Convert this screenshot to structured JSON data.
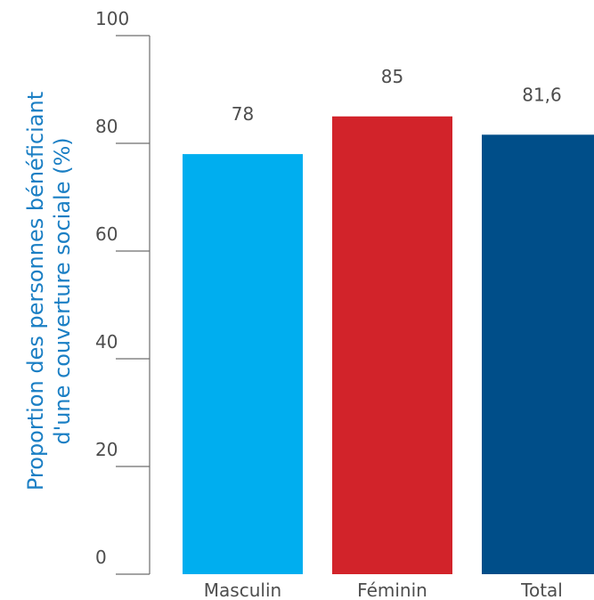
{
  "chart_data": {
    "type": "bar",
    "title": "",
    "xlabel": "",
    "ylabel_lines": [
      "Proportion des personnes bénéficiant",
      "d'une couverture sociale (%)"
    ],
    "ylim": [
      0,
      100
    ],
    "yticks": [
      {
        "value": 0,
        "label": "0"
      },
      {
        "value": 20,
        "label": "20"
      },
      {
        "value": 40,
        "label": "40"
      },
      {
        "value": 60,
        "label": "60"
      },
      {
        "value": 80,
        "label": "80"
      },
      {
        "value": 100,
        "label": "100"
      }
    ],
    "categories": [
      "Masculin",
      "Féminin",
      "Total"
    ],
    "values": [
      78,
      85,
      81.6
    ],
    "value_labels": [
      "78",
      "85",
      "81,6"
    ],
    "colors": [
      "#00aeef",
      "#d2232a",
      "#004e89"
    ],
    "grid": false,
    "legend": "none"
  }
}
